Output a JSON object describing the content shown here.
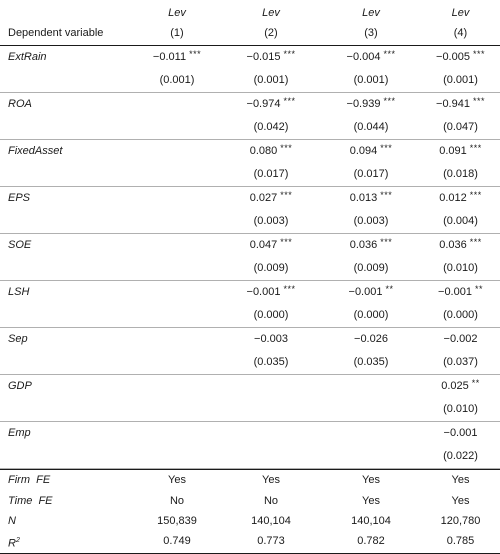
{
  "header": {
    "col_names": [
      "Lev",
      "Lev",
      "Lev",
      "Lev"
    ],
    "dependent_label": "Dependent variable",
    "col_numbers": [
      "(1)",
      "(2)",
      "(3)",
      "(4)"
    ]
  },
  "rows": [
    {
      "name": "ExtRain",
      "coef": [
        "−0.011",
        "−0.015",
        "−0.004",
        "−0.005"
      ],
      "stars": [
        "***",
        "***",
        "***",
        "***"
      ],
      "se": [
        "(0.001)",
        "(0.001)",
        "(0.001)",
        "(0.001)"
      ]
    },
    {
      "name": "ROA",
      "coef": [
        "",
        "−0.974",
        "−0.939",
        "−0.941"
      ],
      "stars": [
        "",
        "***",
        "***",
        "***"
      ],
      "se": [
        "",
        "(0.042)",
        "(0.044)",
        "(0.047)"
      ]
    },
    {
      "name": "FixedAsset",
      "coef": [
        "",
        "0.080",
        "0.094",
        "0.091"
      ],
      "stars": [
        "",
        "***",
        "***",
        "***"
      ],
      "se": [
        "",
        "(0.017)",
        "(0.017)",
        "(0.018)"
      ]
    },
    {
      "name": "EPS",
      "coef": [
        "",
        "0.027",
        "0.013",
        "0.012"
      ],
      "stars": [
        "",
        "***",
        "***",
        "***"
      ],
      "se": [
        "",
        "(0.003)",
        "(0.003)",
        "(0.004)"
      ]
    },
    {
      "name": "SOE",
      "coef": [
        "",
        "0.047",
        "0.036",
        "0.036"
      ],
      "stars": [
        "",
        "***",
        "***",
        "***"
      ],
      "se": [
        "",
        "(0.009)",
        "(0.009)",
        "(0.010)"
      ]
    },
    {
      "name": "LSH",
      "coef": [
        "",
        "−0.001",
        "−0.001",
        "−0.001"
      ],
      "stars": [
        "",
        "***",
        "**",
        "**"
      ],
      "se": [
        "",
        "(0.000)",
        "(0.000)",
        "(0.000)"
      ]
    },
    {
      "name": "Sep",
      "coef": [
        "",
        "−0.003",
        "−0.026",
        "−0.002"
      ],
      "stars": [
        "",
        "",
        "",
        ""
      ],
      "se": [
        "",
        "(0.035)",
        "(0.035)",
        "(0.037)"
      ]
    },
    {
      "name": "GDP",
      "coef": [
        "",
        "",
        "",
        "0.025"
      ],
      "stars": [
        "",
        "",
        "",
        "**"
      ],
      "se": [
        "",
        "",
        "",
        "(0.010)"
      ]
    },
    {
      "name": "Emp",
      "coef": [
        "",
        "",
        "",
        "−0.001"
      ],
      "stars": [
        "",
        "",
        "",
        ""
      ],
      "se": [
        "",
        "",
        "",
        "(0.022)"
      ]
    }
  ],
  "footer": {
    "firm_fe": {
      "label": "Firm  FE",
      "values": [
        "Yes",
        "Yes",
        "Yes",
        "Yes"
      ]
    },
    "time_fe": {
      "label": "Time  FE",
      "values": [
        "No",
        "No",
        "Yes",
        "Yes"
      ]
    },
    "n": {
      "label": "N",
      "values": [
        "150,839",
        "140,104",
        "140,104",
        "120,780"
      ]
    },
    "r2": {
      "label": "R",
      "label_sup": "2",
      "values": [
        "0.749",
        "0.773",
        "0.782",
        "0.785"
      ]
    }
  }
}
